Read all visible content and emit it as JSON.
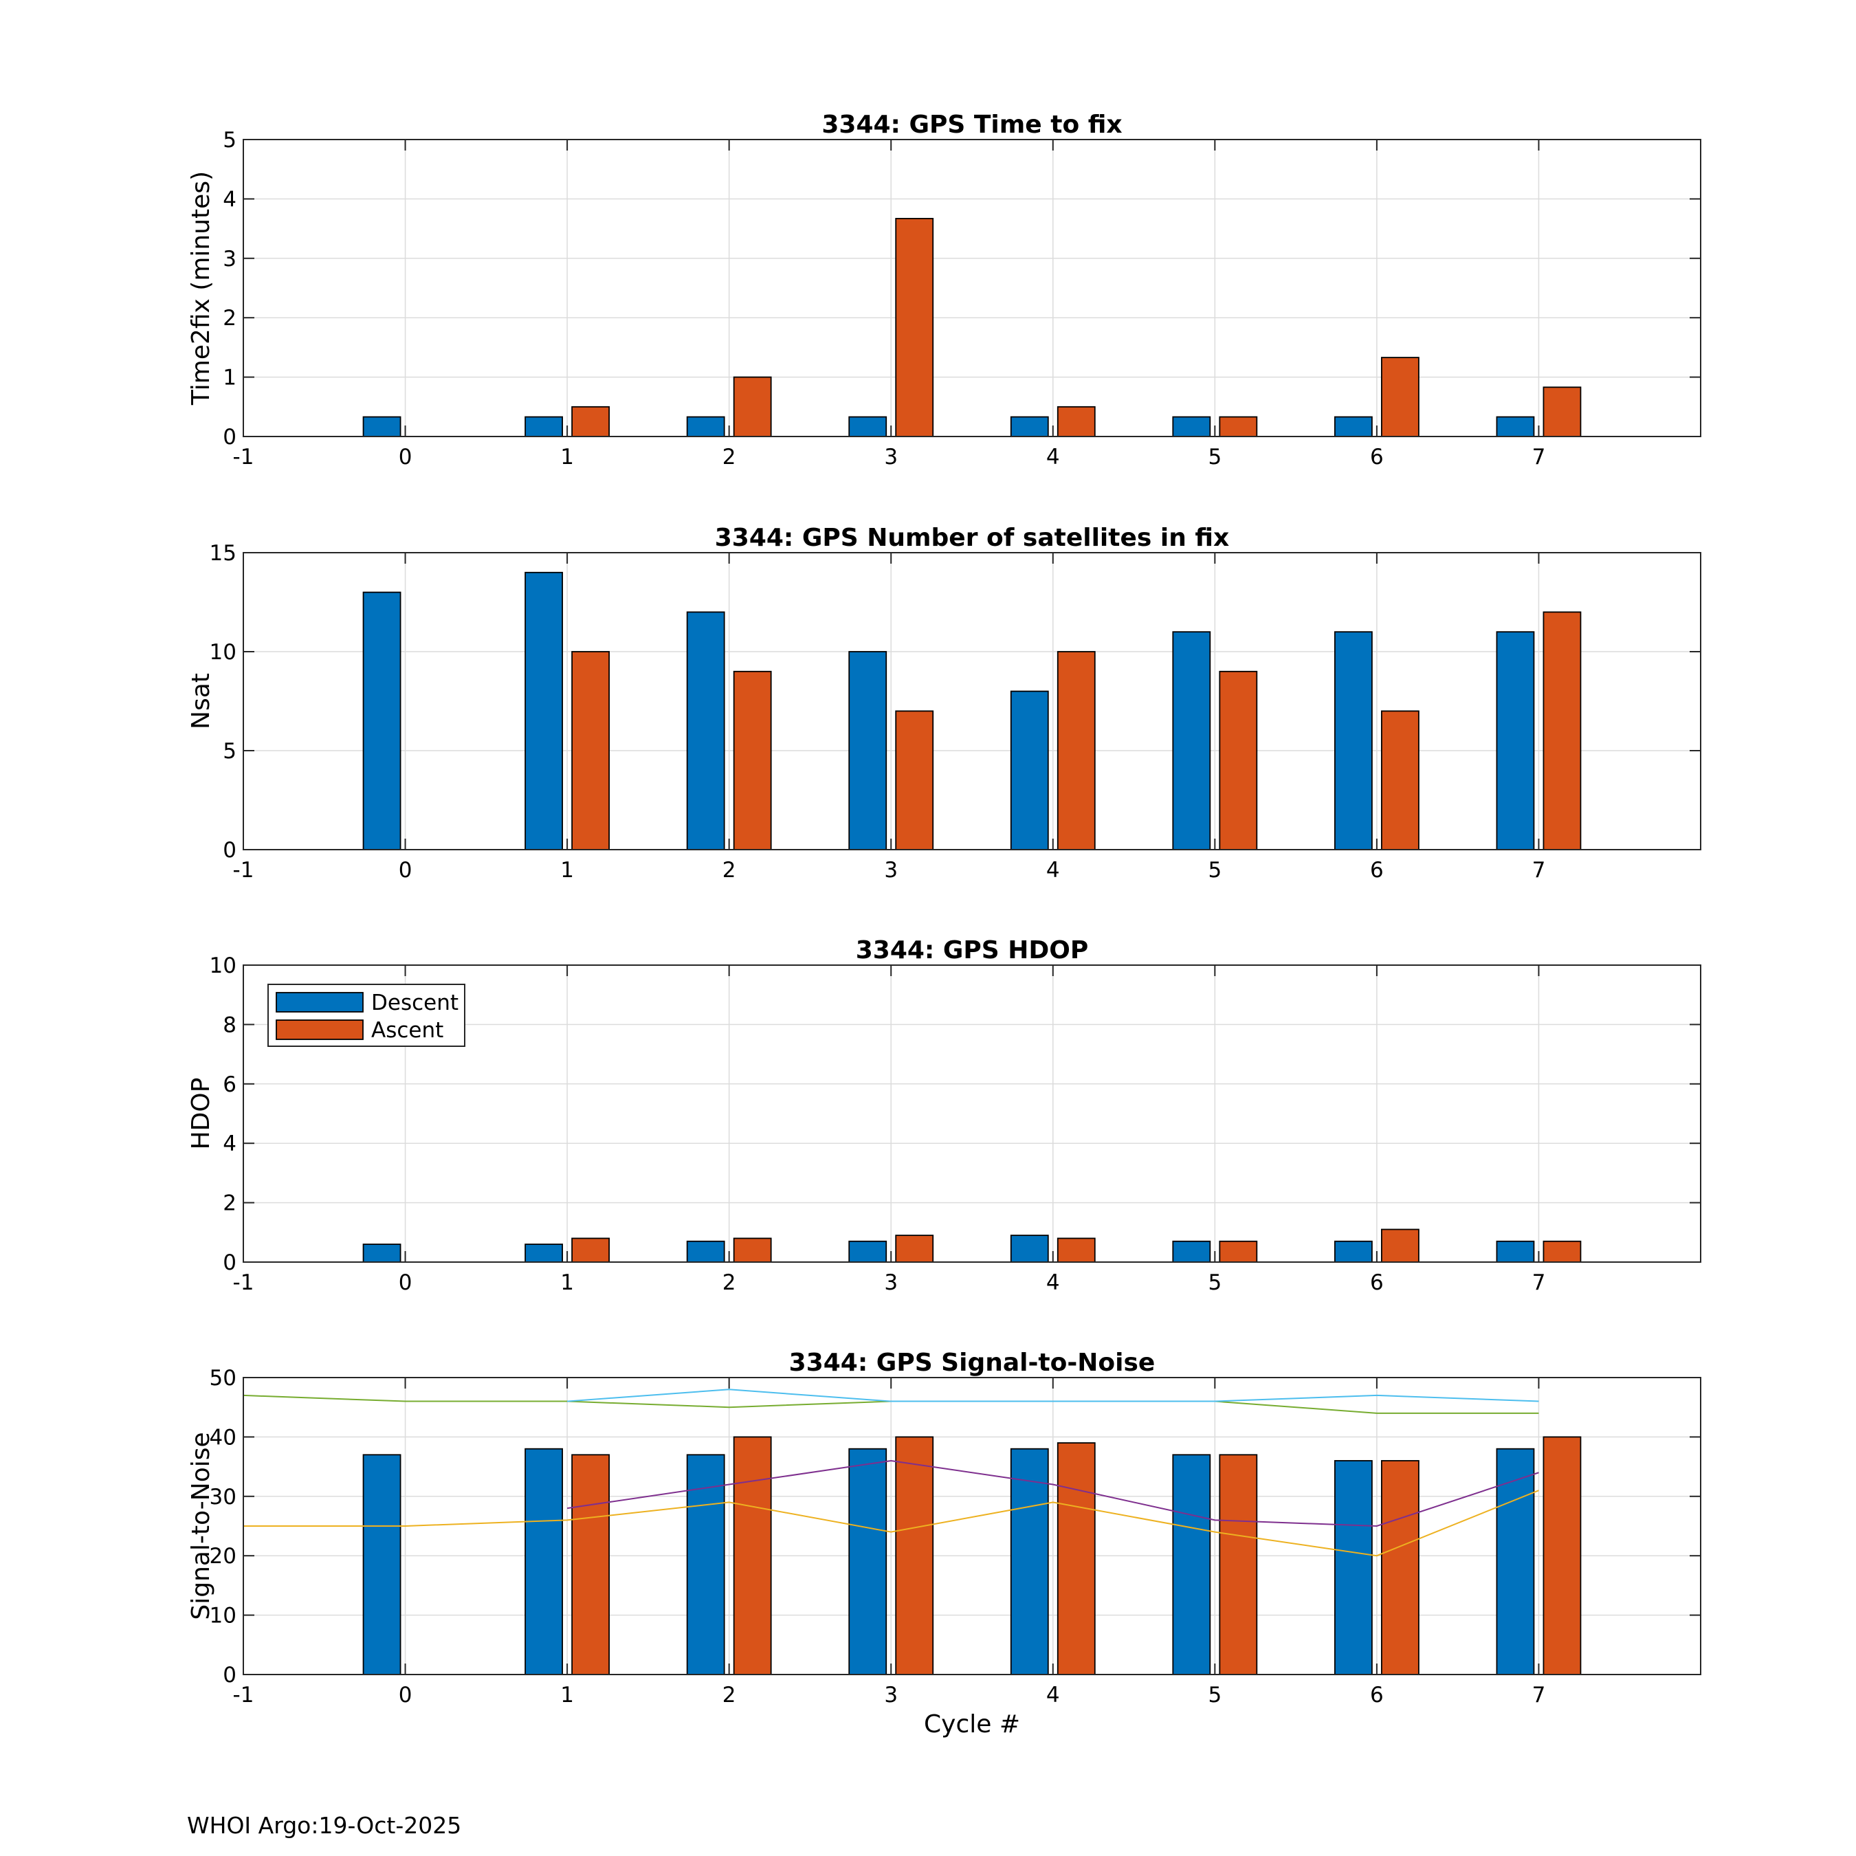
{
  "figure": {
    "footer": "WHOI Argo:19-Oct-2025",
    "colors": {
      "descent": "#0072BD",
      "ascent": "#D95319",
      "grid": "#DCDCDC",
      "axis": "#262626"
    }
  },
  "chart_data": [
    {
      "type": "bar",
      "title": "3344: GPS Time to fix",
      "xlabel": "",
      "ylabel": "Time2fix (minutes)",
      "xlim": [
        -1,
        8
      ],
      "xticks": [
        -1,
        0,
        1,
        2,
        3,
        4,
        5,
        6,
        7
      ],
      "ylim": [
        0,
        5
      ],
      "yticks": [
        0,
        1,
        2,
        3,
        4,
        5
      ],
      "grid": true,
      "categories": [
        0,
        1,
        2,
        3,
        4,
        5,
        6,
        7
      ],
      "series": [
        {
          "name": "Descent",
          "color": "#0072BD",
          "values": [
            0.33,
            0.33,
            0.33,
            0.33,
            0.33,
            0.33,
            0.33,
            0.33
          ]
        },
        {
          "name": "Ascent",
          "color": "#D95319",
          "values": [
            null,
            0.5,
            1.0,
            3.67,
            0.5,
            0.33,
            1.33,
            0.83
          ]
        }
      ]
    },
    {
      "type": "bar",
      "title": "3344: GPS Number of satellites in fix",
      "xlabel": "",
      "ylabel": "Nsat",
      "xlim": [
        -1,
        8
      ],
      "xticks": [
        -1,
        0,
        1,
        2,
        3,
        4,
        5,
        6,
        7
      ],
      "ylim": [
        0,
        15
      ],
      "yticks": [
        0,
        5,
        10,
        15
      ],
      "grid": true,
      "categories": [
        0,
        1,
        2,
        3,
        4,
        5,
        6,
        7
      ],
      "series": [
        {
          "name": "Descent",
          "color": "#0072BD",
          "values": [
            13,
            14,
            12,
            10,
            8,
            11,
            11,
            11
          ]
        },
        {
          "name": "Ascent",
          "color": "#D95319",
          "values": [
            null,
            10,
            9,
            7,
            10,
            9,
            7,
            12
          ]
        }
      ]
    },
    {
      "type": "bar",
      "title": "3344: GPS HDOP",
      "xlabel": "",
      "ylabel": "HDOP",
      "xlim": [
        -1,
        8
      ],
      "xticks": [
        -1,
        0,
        1,
        2,
        3,
        4,
        5,
        6,
        7
      ],
      "ylim": [
        0,
        10
      ],
      "yticks": [
        0,
        2,
        4,
        6,
        8,
        10
      ],
      "grid": true,
      "legend": {
        "placement": "top-left",
        "entries": [
          "Descent",
          "Ascent"
        ]
      },
      "categories": [
        0,
        1,
        2,
        3,
        4,
        5,
        6,
        7
      ],
      "series": [
        {
          "name": "Descent",
          "color": "#0072BD",
          "values": [
            0.6,
            0.6,
            0.7,
            0.7,
            0.9,
            0.7,
            0.7,
            0.7
          ]
        },
        {
          "name": "Ascent",
          "color": "#D95319",
          "values": [
            null,
            0.8,
            0.8,
            0.9,
            0.8,
            0.7,
            1.1,
            0.7
          ]
        }
      ]
    },
    {
      "type": "bar",
      "title": "3344: GPS Signal-to-Noise",
      "xlabel": "Cycle #",
      "ylabel": "Signal-to-Noise",
      "xlim": [
        -1,
        8
      ],
      "xticks": [
        -1,
        0,
        1,
        2,
        3,
        4,
        5,
        6,
        7
      ],
      "ylim": [
        0,
        50
      ],
      "yticks": [
        0,
        10,
        20,
        30,
        40,
        50
      ],
      "grid": true,
      "categories": [
        0,
        1,
        2,
        3,
        4,
        5,
        6,
        7
      ],
      "series": [
        {
          "name": "Descent",
          "color": "#0072BD",
          "values": [
            37,
            38,
            37,
            38,
            38,
            37,
            36,
            38
          ]
        },
        {
          "name": "Ascent",
          "color": "#D95319",
          "values": [
            null,
            37,
            40,
            40,
            39,
            37,
            36,
            40
          ]
        }
      ],
      "lines": [
        {
          "color": "#77AC30",
          "x": [
            -1,
            0,
            1,
            2,
            3,
            4,
            5,
            6,
            7
          ],
          "y": [
            47,
            46,
            46,
            45,
            46,
            46,
            46,
            44,
            44
          ]
        },
        {
          "color": "#4DBEEE",
          "x": [
            1,
            2,
            3,
            4,
            5,
            6,
            7
          ],
          "y": [
            46,
            48,
            46,
            46,
            46,
            47,
            46
          ]
        },
        {
          "color": "#7E2F8E",
          "x": [
            1,
            2,
            3,
            4,
            5,
            6,
            7
          ],
          "y": [
            28,
            32,
            36,
            32,
            26,
            25,
            34
          ]
        },
        {
          "color": "#EDB120",
          "x": [
            -1,
            0,
            1,
            2,
            3,
            4,
            5,
            6,
            7
          ],
          "y": [
            25,
            25,
            26,
            29,
            24,
            29,
            24,
            20,
            31
          ]
        }
      ]
    }
  ]
}
